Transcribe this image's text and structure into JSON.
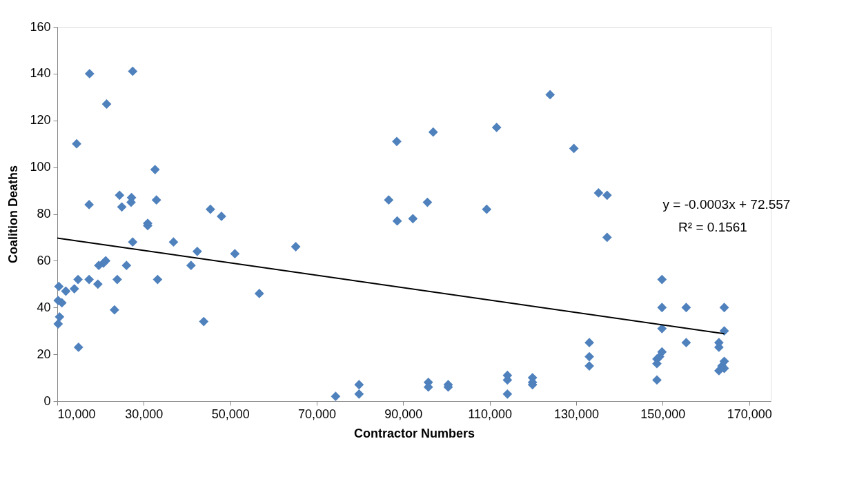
{
  "chart_data": {
    "type": "scatter",
    "xlabel": "Contractor Numbers",
    "ylabel": "Coalition Deaths",
    "xlim": [
      10000,
      175000
    ],
    "xticks": [
      {
        "value": 10000,
        "label": "10,000"
      },
      {
        "value": 30000,
        "label": "30,000"
      },
      {
        "value": 50000,
        "label": "50,000"
      },
      {
        "value": 70000,
        "label": "70,000"
      },
      {
        "value": 90000,
        "label": "90,000"
      },
      {
        "value": 110000,
        "label": "110,000"
      },
      {
        "value": 130000,
        "label": "130,000"
      },
      {
        "value": 150000,
        "label": "150,000"
      },
      {
        "value": 170000,
        "label": "170,000"
      }
    ],
    "ylim": [
      0,
      160
    ],
    "yticks": [
      0,
      20,
      40,
      60,
      80,
      100,
      120,
      140,
      160
    ],
    "grid": false,
    "series": [
      {
        "marker": "diamond",
        "color": "#4f81bd",
        "x": [
          17470,
          27440,
          21410,
          14480,
          32610,
          17360,
          24400,
          24930,
          27170,
          27070,
          32930,
          45410,
          47970,
          30910,
          30910,
          27440,
          36880,
          42370,
          51070,
          40930,
          21200,
          20670,
          19600,
          26000,
          14800,
          17360,
          23870,
          33200,
          19390,
          10370,
          11970,
          13950,
          56720,
          10210,
          11070,
          10530,
          10210,
          23230,
          43870,
          14910,
          65150,
          88510,
          96930,
          111600,
          86640,
          95600,
          88610,
          92240,
          109300,
          74370,
          79790,
          79790,
          95810,
          95810,
          100400,
          100400,
          114100,
          114100,
          114100,
          119900,
          119900,
          119900,
          123970,
          129470,
          135170,
          137150,
          137150,
          133040,
          133040,
          133040,
          149840,
          149840,
          149840,
          149840,
          149300,
          148670,
          148670,
          148670,
          155440,
          155440,
          164240,
          164240,
          163010,
          163010,
          164240,
          163700,
          163010,
          164240
        ],
        "values": [
          140,
          141,
          127,
          110,
          99,
          84,
          88,
          83,
          87,
          85,
          86,
          82,
          79,
          76,
          75,
          68,
          68,
          64,
          63,
          58,
          60,
          59,
          58,
          58,
          52,
          52,
          52,
          52,
          50,
          49,
          47,
          48,
          46,
          43,
          42,
          36,
          33,
          39,
          34,
          23,
          66,
          111,
          115,
          117,
          86,
          85,
          77,
          78,
          82,
          2,
          7,
          3,
          8,
          6,
          7,
          6,
          11,
          9,
          3,
          10,
          8,
          7,
          131,
          108,
          89,
          88,
          70,
          25,
          19,
          15,
          52,
          40,
          31,
          21,
          19,
          18,
          16,
          9,
          40,
          25,
          40,
          30,
          25,
          23,
          17,
          15,
          13,
          14
        ]
      },
      {
        "type": "line",
        "color": "#000000",
        "x": [
          10000,
          164240
        ],
        "values": [
          69.7,
          28.8
        ]
      }
    ],
    "annotations": [
      "y = -0.0003x + 72.557",
      "R² = 0.1561"
    ]
  }
}
